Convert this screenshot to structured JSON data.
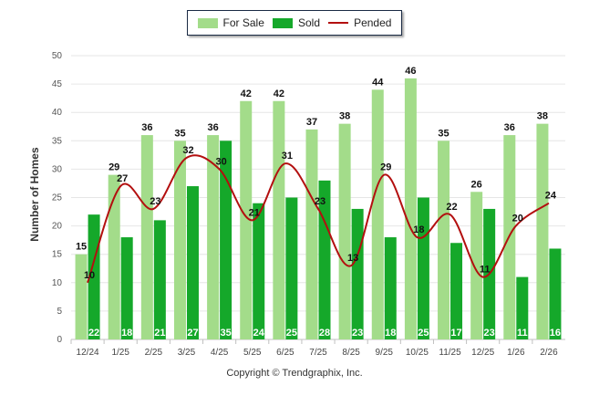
{
  "chart_data": {
    "type": "bar",
    "categories": [
      "12/24",
      "1/25",
      "2/25",
      "3/25",
      "4/25",
      "5/25",
      "6/25",
      "7/25",
      "8/25",
      "9/25",
      "10/25",
      "11/25",
      "12/25",
      "1/26",
      "2/26"
    ],
    "series": [
      {
        "name": "For Sale",
        "type": "bar",
        "color": "#a3dc8a",
        "values": [
          15,
          29,
          36,
          35,
          36,
          42,
          42,
          37,
          38,
          44,
          46,
          35,
          26,
          36,
          38
        ]
      },
      {
        "name": "Sold",
        "type": "bar",
        "color": "#15a82a",
        "values": [
          22,
          18,
          21,
          27,
          35,
          24,
          25,
          28,
          23,
          18,
          25,
          17,
          23,
          11,
          16
        ]
      },
      {
        "name": "Pended",
        "type": "line",
        "color": "#b30f0f",
        "values": [
          10,
          27,
          23,
          32,
          30,
          21,
          31,
          23,
          13,
          29,
          18,
          22,
          11,
          20,
          24
        ]
      }
    ],
    "ylabel": "Number of Homes",
    "ylim": [
      0,
      50
    ],
    "yticks": [
      0,
      5,
      10,
      15,
      20,
      25,
      30,
      35,
      40,
      45,
      50
    ],
    "grid": true,
    "legend_position": "top-center",
    "credit": "Copyright © Trendgraphix, Inc."
  }
}
